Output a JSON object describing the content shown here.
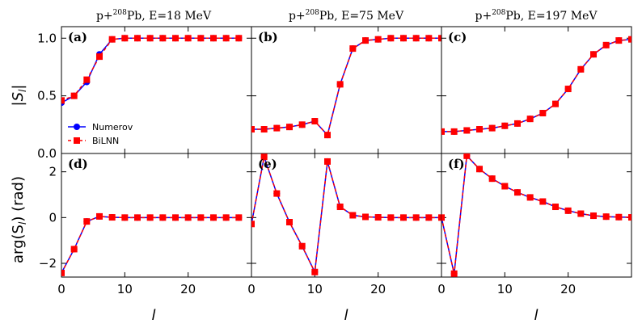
{
  "colors": {
    "numerov": "#0000ff",
    "bilnn": "#ff0000",
    "axis": "#000000"
  },
  "legend": {
    "numerov": "Numerov",
    "bilnn": "BiLNN",
    "placement": "lower-left of panel (a)"
  },
  "column_titles": [
    {
      "prefix": "p+",
      "sup": "208",
      "suffix": "Pb, E=18 MeV"
    },
    {
      "prefix": "p+",
      "sup": "208",
      "suffix": "Pb, E=75 MeV"
    },
    {
      "prefix": "p+",
      "sup": "208",
      "suffix": "Pb, E=197 MeV"
    }
  ],
  "y_labels": {
    "top": "|S",
    "top_sub": "l",
    "top_end": "|",
    "bottom": "arg(S",
    "bottom_sub": "l",
    "bottom_end": ") (rad)"
  },
  "x_label": "l",
  "x_ticks": [
    0,
    10,
    20
  ],
  "x_tick_labels": [
    "0",
    "10",
    "20"
  ],
  "y_ticks_top": [
    0.0,
    0.5,
    1.0
  ],
  "y_tick_labels_top": [
    "0.0",
    "0.5",
    "1.0"
  ],
  "y_ticks_bottom": [
    -2,
    0,
    2
  ],
  "y_tick_labels_bottom": [
    "−2",
    "0",
    "2"
  ],
  "chart_data": [
    {
      "type": "line",
      "tag": "(a)",
      "title": "p+208Pb, E=18 MeV",
      "xlabel": "",
      "ylabel": "|S_l|",
      "xlim": [
        0,
        30
      ],
      "ylim": [
        0,
        1.1
      ],
      "series": [
        {
          "name": "Numerov",
          "x": [
            0,
            2,
            4,
            6,
            8,
            10,
            12,
            14,
            16,
            18,
            20,
            22,
            24,
            26,
            28
          ],
          "values": [
            0.44,
            0.5,
            0.62,
            0.86,
            0.99,
            1.0,
            1.0,
            1.0,
            1.0,
            1.0,
            1.0,
            1.0,
            1.0,
            1.0,
            1.0
          ]
        },
        {
          "name": "BiLNN",
          "x": [
            0,
            2,
            4,
            6,
            8,
            10,
            12,
            14,
            16,
            18,
            20,
            22,
            24,
            26,
            28
          ],
          "values": [
            0.46,
            0.5,
            0.64,
            0.84,
            0.99,
            1.0,
            1.0,
            1.0,
            1.0,
            1.0,
            1.0,
            1.0,
            1.0,
            1.0,
            1.0
          ]
        }
      ]
    },
    {
      "type": "line",
      "tag": "(b)",
      "title": "p+208Pb, E=75 MeV",
      "xlabel": "",
      "ylabel": "",
      "xlim": [
        0,
        30
      ],
      "ylim": [
        0,
        1.1
      ],
      "series": [
        {
          "name": "Numerov",
          "x": [
            0,
            2,
            4,
            6,
            8,
            10,
            12,
            14,
            16,
            18,
            20,
            22,
            24,
            26,
            28,
            30
          ],
          "values": [
            0.21,
            0.21,
            0.22,
            0.23,
            0.25,
            0.28,
            0.16,
            0.6,
            0.91,
            0.98,
            0.99,
            1.0,
            1.0,
            1.0,
            1.0,
            1.0
          ]
        },
        {
          "name": "BiLNN",
          "x": [
            0,
            2,
            4,
            6,
            8,
            10,
            12,
            14,
            16,
            18,
            20,
            22,
            24,
            26,
            28,
            30
          ],
          "values": [
            0.21,
            0.21,
            0.22,
            0.23,
            0.25,
            0.28,
            0.16,
            0.6,
            0.91,
            0.98,
            0.99,
            1.0,
            1.0,
            1.0,
            1.0,
            1.0
          ]
        }
      ]
    },
    {
      "type": "line",
      "tag": "(c)",
      "title": "p+208Pb, E=197 MeV",
      "xlabel": "",
      "ylabel": "",
      "xlim": [
        0,
        30
      ],
      "ylim": [
        0,
        1.1
      ],
      "series": [
        {
          "name": "Numerov",
          "x": [
            0,
            2,
            4,
            6,
            8,
            10,
            12,
            14,
            16,
            18,
            20,
            22,
            24,
            26,
            28,
            30
          ],
          "values": [
            0.19,
            0.19,
            0.2,
            0.21,
            0.22,
            0.24,
            0.26,
            0.3,
            0.35,
            0.43,
            0.56,
            0.73,
            0.86,
            0.94,
            0.98,
            0.99
          ]
        },
        {
          "name": "BiLNN",
          "x": [
            0,
            2,
            4,
            6,
            8,
            10,
            12,
            14,
            16,
            18,
            20,
            22,
            24,
            26,
            28,
            30
          ],
          "values": [
            0.19,
            0.19,
            0.2,
            0.21,
            0.22,
            0.24,
            0.26,
            0.3,
            0.35,
            0.43,
            0.56,
            0.73,
            0.86,
            0.94,
            0.98,
            0.99
          ]
        }
      ]
    },
    {
      "type": "line",
      "tag": "(d)",
      "title": "",
      "xlabel": "l",
      "ylabel": "arg(S_l) (rad)",
      "xlim": [
        0,
        30
      ],
      "ylim": [
        -2.6,
        2.8
      ],
      "series": [
        {
          "name": "Numerov",
          "x": [
            0,
            2,
            4,
            6,
            8,
            10,
            12,
            14,
            16,
            18,
            20,
            22,
            24,
            26,
            28
          ],
          "values": [
            -2.42,
            -1.38,
            -0.17,
            0.05,
            0.01,
            0.0,
            0.0,
            0.0,
            0.0,
            0.0,
            0.0,
            0.0,
            0.0,
            0.0,
            0.0
          ]
        },
        {
          "name": "BiLNN",
          "x": [
            0,
            2,
            4,
            6,
            8,
            10,
            12,
            14,
            16,
            18,
            20,
            22,
            24,
            26,
            28
          ],
          "values": [
            -2.42,
            -1.38,
            -0.17,
            0.05,
            0.01,
            0.0,
            0.0,
            0.0,
            0.0,
            0.0,
            0.0,
            0.0,
            0.0,
            0.0,
            0.0
          ]
        }
      ]
    },
    {
      "type": "line",
      "tag": "(e)",
      "title": "",
      "xlabel": "l",
      "ylabel": "",
      "xlim": [
        0,
        30
      ],
      "ylim": [
        -2.6,
        2.8
      ],
      "series": [
        {
          "name": "Numerov",
          "x": [
            0,
            2,
            4,
            6,
            8,
            10,
            12,
            14,
            16,
            18,
            20,
            22,
            24,
            26,
            28,
            30
          ],
          "values": [
            -0.28,
            2.65,
            1.05,
            -0.2,
            -1.25,
            -2.38,
            2.45,
            0.47,
            0.1,
            0.03,
            0.01,
            0.0,
            0.0,
            0.0,
            0.0,
            0.0
          ]
        },
        {
          "name": "BiLNN",
          "x": [
            0,
            2,
            4,
            6,
            8,
            10,
            12,
            14,
            16,
            18,
            20,
            22,
            24,
            26,
            28,
            30
          ],
          "values": [
            -0.28,
            2.65,
            1.05,
            -0.2,
            -1.25,
            -2.38,
            2.45,
            0.47,
            0.1,
            0.03,
            0.01,
            0.0,
            0.0,
            0.0,
            0.0,
            0.0
          ]
        }
      ]
    },
    {
      "type": "line",
      "tag": "(f)",
      "title": "",
      "xlabel": "l",
      "ylabel": "",
      "xlim": [
        0,
        30
      ],
      "ylim": [
        -2.6,
        2.8
      ],
      "series": [
        {
          "name": "Numerov",
          "x": [
            0,
            2,
            4,
            6,
            8,
            10,
            12,
            14,
            16,
            18,
            20,
            22,
            24,
            26,
            28,
            30
          ],
          "values": [
            0.0,
            -2.45,
            2.7,
            2.12,
            1.7,
            1.37,
            1.1,
            0.88,
            0.7,
            0.47,
            0.3,
            0.17,
            0.08,
            0.04,
            0.02,
            0.01
          ]
        },
        {
          "name": "BiLNN",
          "x": [
            0,
            2,
            4,
            6,
            8,
            10,
            12,
            14,
            16,
            18,
            20,
            22,
            24,
            26,
            28,
            30
          ],
          "values": [
            0.0,
            -2.45,
            2.7,
            2.12,
            1.7,
            1.37,
            1.1,
            0.88,
            0.7,
            0.47,
            0.3,
            0.17,
            0.08,
            0.04,
            0.02,
            0.01
          ]
        }
      ]
    }
  ]
}
